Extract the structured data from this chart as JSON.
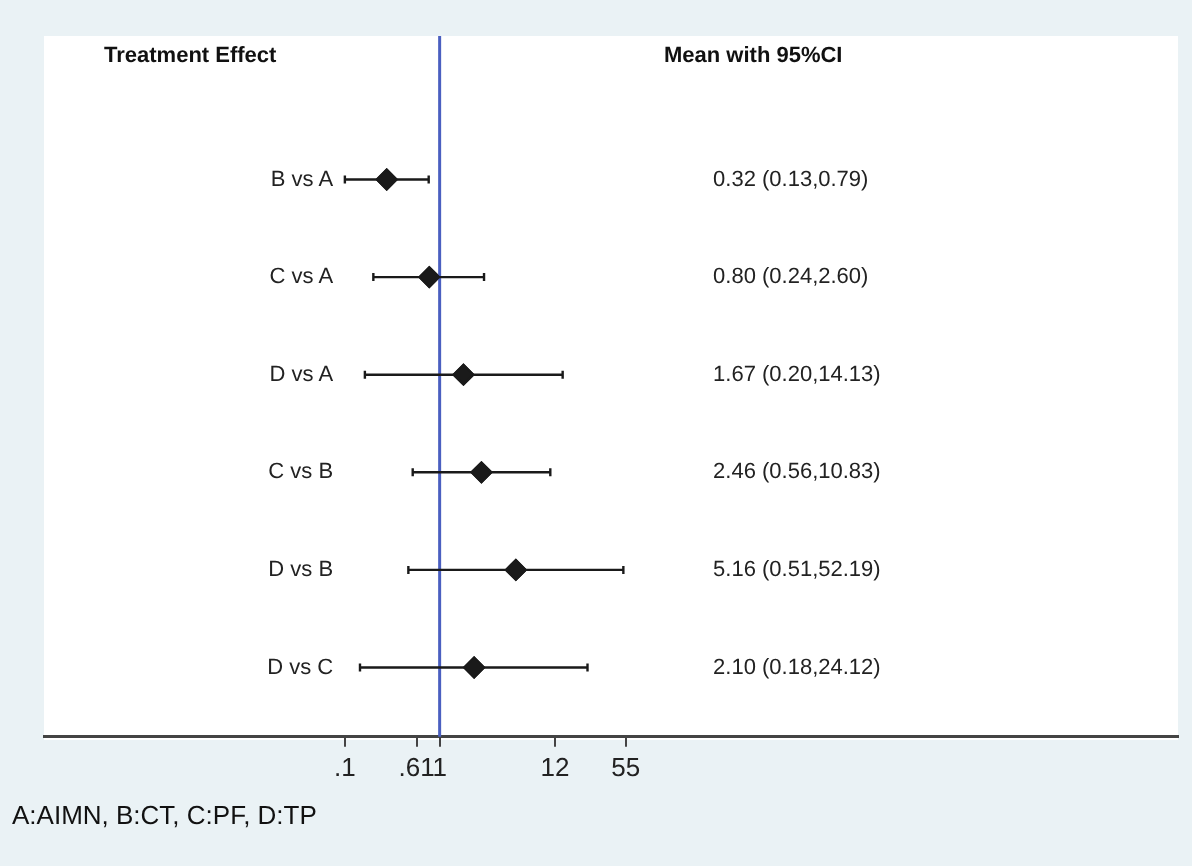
{
  "chart_data": {
    "type": "scatter",
    "orientation": "horizontal",
    "categories": [
      "B vs A",
      "C vs A",
      "D vs A",
      "C vs B",
      "D vs B",
      "D vs C"
    ],
    "values": [
      0.32,
      0.8,
      1.67,
      2.46,
      5.16,
      2.1
    ],
    "errors": [
      [
        0.13,
        0.79
      ],
      [
        0.24,
        2.6
      ],
      [
        0.2,
        14.13
      ],
      [
        0.56,
        10.83
      ],
      [
        0.51,
        52.19
      ],
      [
        0.18,
        24.12
      ]
    ],
    "color": "#1a1a1a",
    "marker": "diamond",
    "log": "x",
    "xlim": [
      0.0002,
      8000000
    ],
    "xticks": [
      {
        "value": 0.13,
        "label": ".1"
      },
      {
        "value": 0.61,
        "label": ".61"
      },
      1,
      12,
      55
    ],
    "ref_lines": [
      {
        "axis": "x",
        "value": 1,
        "color": "#4a5fc0"
      }
    ],
    "annotations": [
      "Treatment Effect",
      "Mean with 95%CI",
      "A:AIMN, B:CT, C:PF, D:TP",
      "0.32 (0.13,0.79)",
      "0.80 (0.24,2.60)",
      "1.67 (0.20,14.13)",
      "2.46 (0.56,10.83)",
      "5.16 (0.51,52.19)",
      "2.10 (0.18,24.12)"
    ],
    "grid": false,
    "legend": false
  }
}
